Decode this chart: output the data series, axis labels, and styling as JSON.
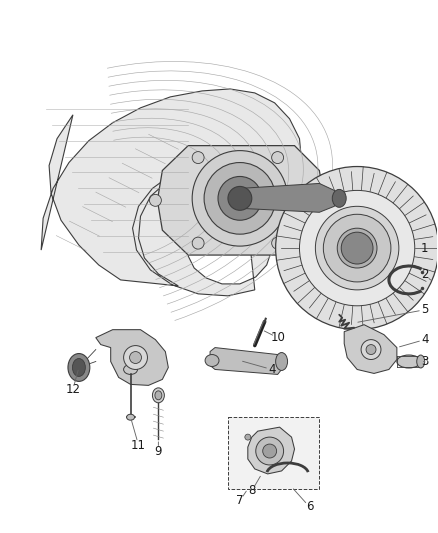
{
  "bg": "#ffffff",
  "ec": "#3a3a3a",
  "figsize": [
    4.38,
    5.33
  ],
  "dpi": 100,
  "font_size": 8.5,
  "label_color": "#1a1a1a",
  "leader_color": "#666666",
  "parts": {
    "labels": [
      "1",
      "2",
      "3",
      "4",
      "4",
      "5",
      "6",
      "7",
      "8",
      "9",
      "10",
      "11",
      "12"
    ],
    "lx": [
      425,
      425,
      425,
      425,
      275,
      425,
      310,
      242,
      252,
      160,
      278,
      138,
      78
    ],
    "ly": [
      255,
      278,
      358,
      332,
      358,
      308,
      490,
      480,
      492,
      445,
      340,
      438,
      390
    ],
    "ex": [
      393,
      408,
      410,
      395,
      310,
      368,
      278,
      272,
      285,
      163,
      278,
      148,
      95
    ],
    "ey": [
      250,
      278,
      355,
      330,
      358,
      308,
      460,
      460,
      480,
      425,
      330,
      420,
      388
    ]
  }
}
